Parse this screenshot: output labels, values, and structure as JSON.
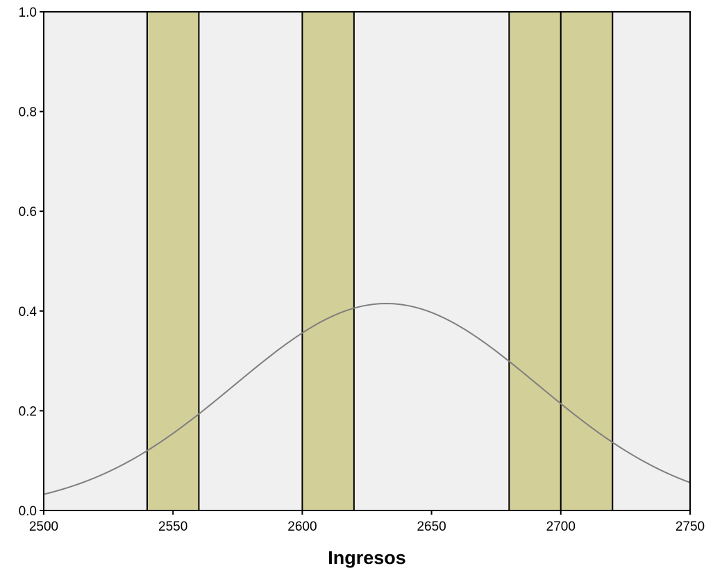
{
  "chart_data": {
    "type": "histogram",
    "title": "",
    "xlabel": "Ingresos",
    "ylabel": "",
    "xlim": [
      2500,
      2750
    ],
    "ylim": [
      0.0,
      1.0
    ],
    "x_ticks": [
      "2500",
      "2550",
      "2600",
      "2650",
      "2700",
      "2750"
    ],
    "y_ticks": [
      "0.0",
      "0.2",
      "0.4",
      "0.6",
      "0.8",
      "1.0"
    ],
    "bins": [
      {
        "start": 2540,
        "end": 2560,
        "value": 1.0
      },
      {
        "start": 2600,
        "end": 2620,
        "value": 1.0
      },
      {
        "start": 2680,
        "end": 2700,
        "value": 1.0
      },
      {
        "start": 2700,
        "end": 2720,
        "value": 1.0
      }
    ],
    "normal_curve": {
      "mean": 2632.5,
      "peak": 0.415,
      "sd": 58.7
    },
    "grid": false,
    "colors": {
      "plot_background": "#f0f0f0",
      "bar_fill": "#d3cf98",
      "bar_stroke": "#000000",
      "curve": "#7f7f7f",
      "axis": "#000000"
    }
  }
}
